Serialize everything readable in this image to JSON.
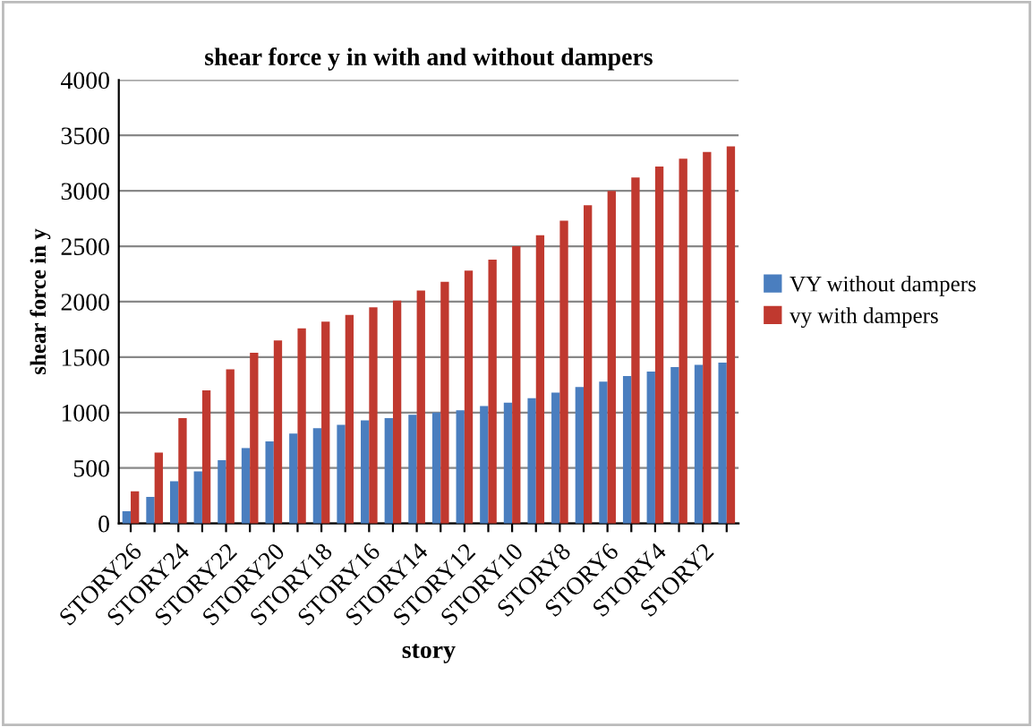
{
  "chart_data": {
    "type": "bar",
    "title": "shear force y in with and without dampers",
    "xlabel": "story",
    "ylabel": "shear force in y",
    "categories": [
      "STORY26",
      null,
      "STORY24",
      null,
      "STORY22",
      null,
      "STORY20",
      null,
      "STORY18",
      null,
      "STORY16",
      null,
      "STORY14",
      null,
      "STORY12",
      null,
      "STORY10",
      null,
      "STORY8",
      null,
      "STORY6",
      null,
      "STORY4",
      null,
      "STORY2",
      null
    ],
    "series": [
      {
        "name": "VY without dampers",
        "color": "#4a7ebf",
        "values": [
          110,
          240,
          380,
          470,
          570,
          680,
          740,
          810,
          860,
          890,
          930,
          950,
          980,
          1000,
          1020,
          1060,
          1090,
          1130,
          1180,
          1230,
          1280,
          1330,
          1370,
          1410,
          1430,
          1450
        ]
      },
      {
        "name": "vy with dampers",
        "color": "#c0392f",
        "values": [
          290,
          640,
          950,
          1200,
          1390,
          1540,
          1650,
          1760,
          1820,
          1880,
          1950,
          2010,
          2100,
          2180,
          2280,
          2380,
          2500,
          2600,
          2730,
          2870,
          3000,
          3120,
          3220,
          3290,
          3350,
          3400
        ]
      }
    ],
    "ylim": [
      0,
      4000
    ],
    "yticks": [
      0,
      500,
      1000,
      1500,
      2000,
      2500,
      3000,
      3500,
      4000
    ],
    "grid": "y",
    "legend": "right"
  }
}
